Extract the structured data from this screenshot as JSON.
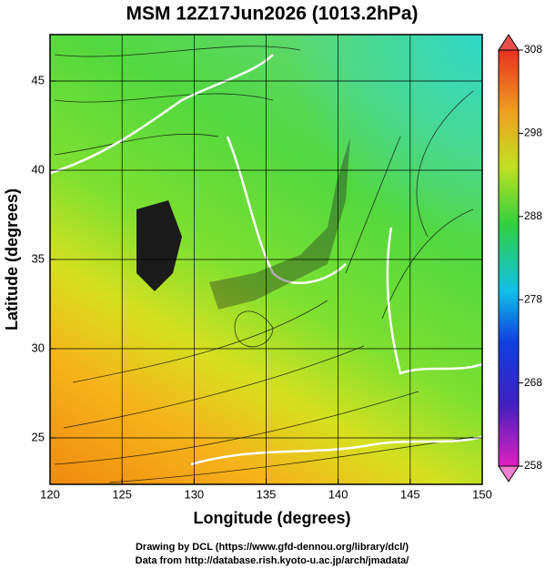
{
  "title": "MSM 12Z17Jun2026 (1013.2hPa)",
  "map": {
    "xlabel": "Longitude (degrees)",
    "ylabel": "Latitude  (degrees)",
    "xlim": [
      120,
      150
    ],
    "ylim": [
      22.4,
      47.6
    ],
    "xticks": [
      120,
      125,
      130,
      135,
      140,
      145,
      150
    ],
    "yticks": [
      25,
      30,
      35,
      40,
      45
    ]
  },
  "colorbar": {
    "lim": [
      258,
      308
    ],
    "ticks": [
      258,
      268,
      278,
      288,
      298,
      308
    ]
  },
  "credits": [
    "Drawing by DCL (https://www.gfd-dennou.org/library/dcl/)",
    "Data from http://database.rish.kyoto-u.ac.jp/arch/jmadata/"
  ]
}
